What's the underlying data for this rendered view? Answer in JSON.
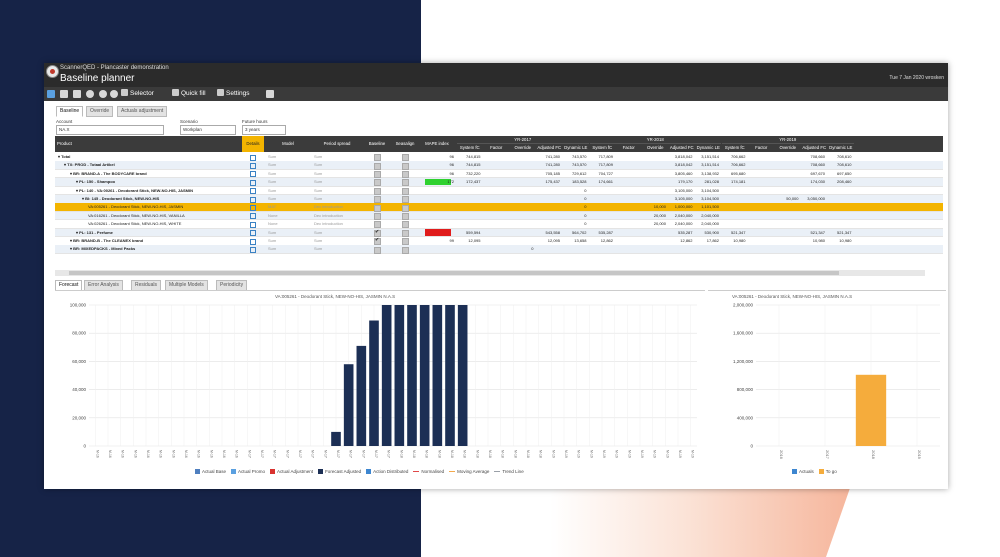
{
  "app": {
    "name": "ScannerQED - Plancaster demonstration",
    "page_title": "Baseline planner",
    "datetime_user": "Tue 7 Jan 2020 wrosken"
  },
  "toolbar": {
    "selector_label": "Selector",
    "quickfill_label": "Quick fill",
    "settings_label": "Settings"
  },
  "top_tabs": [
    "Baseline",
    "Override",
    "Actuals adjustment"
  ],
  "filters": {
    "account": {
      "label": "Account",
      "value": "NA.X"
    },
    "scenario": {
      "label": "Scenario",
      "value": "Workplan"
    },
    "future_hours": {
      "label": "Future hours",
      "value": "3 years"
    }
  },
  "grid": {
    "product_header": "Product",
    "columns": [
      "Details",
      "Model",
      "Period spread",
      "Baseline",
      "Seasalign",
      "MAPE index"
    ],
    "year_groups": [
      "YR-2017",
      "YR-2018",
      "YR-2019"
    ],
    "year_subcolumns": [
      "System fC",
      "Factor",
      "Override",
      "Adjusted FC",
      "Dynamic LE"
    ],
    "rows": [
      {
        "name": "Total",
        "indent": 0,
        "model": "Sum",
        "spread": "Sum",
        "cells": [
          "96",
          "744,815",
          "",
          "",
          "741,280",
          "743,570",
          "717,809",
          "",
          "",
          "3,818,042",
          "3,151,514",
          "706,662",
          "",
          "",
          "708,660",
          "708,610"
        ]
      },
      {
        "name": "TX: PROD - Totaal Artikel",
        "indent": 1,
        "model": "Sum",
        "spread": "Sum",
        "cells": [
          "96",
          "744,815",
          "",
          "",
          "741,280",
          "743,570",
          "717,809",
          "",
          "",
          "3,818,042",
          "3,151,514",
          "706,662",
          "",
          "",
          "708,660",
          "708,610"
        ]
      },
      {
        "name": "BR: BRAND-A - The BODYCARE brand",
        "indent": 2,
        "model": "Sum",
        "spread": "Sum",
        "cells": [
          "96",
          "732,220",
          "",
          "",
          "705,185",
          "729,612",
          "704,727",
          "",
          "",
          "3,805,460",
          "3,138,932",
          "695,680",
          "",
          "",
          "697,670",
          "697,650"
        ]
      },
      {
        "name": "PL: 150 - Shampoo",
        "indent": 3,
        "model": "Sum",
        "spread": "Sum",
        "cells": [
          "172",
          "172,437",
          "",
          "",
          "175,437",
          "183,528",
          "174,661",
          "",
          "",
          "179,170",
          "281,028",
          "174,181",
          "",
          "",
          "174,030",
          "208,460"
        ]
      },
      {
        "name": "PL: 140 - VA:00261 - Deodorant Stick, NEW-NO-HIS, JASMIN",
        "indent": 3,
        "model": "Sum",
        "spread": "Sum",
        "cells": [
          "",
          "",
          "",
          "",
          "",
          "0",
          "",
          "",
          "",
          "3,105,000",
          "3,104,500",
          "",
          "",
          "",
          "",
          ""
        ]
      },
      {
        "name": "BI: 145 - Deodorant Stick, NEW-NO-HIS",
        "indent": 4,
        "model": "Sum",
        "spread": "Sum",
        "cells": [
          "",
          "",
          "",
          "",
          "",
          "0",
          "",
          "",
          "",
          "3,105,000",
          "3,104,500",
          "",
          "",
          "50,000",
          "3,050,000",
          ""
        ]
      },
      {
        "name": "VA:005261 - Deodorant Stick, NEW-NO-HIS, JASMIN",
        "indent": 5,
        "model": "MAT",
        "spread": "Dec introduction",
        "cells": [
          "",
          "",
          "",
          "",
          "",
          "0",
          "",
          "",
          "10,000",
          "1,000,000",
          "1,101,500",
          "",
          "",
          "",
          "",
          ""
        ]
      },
      {
        "name": "VA:016261 - Deodorant Stick, NEW-NO-HIS, VANILLA",
        "indent": 5,
        "model": "None",
        "spread": "Dec introduction",
        "cells": [
          "",
          "",
          "",
          "",
          "",
          "0",
          "",
          "",
          "20,000",
          "2,040,000",
          "2,040,000",
          "",
          "",
          "",
          "",
          ""
        ]
      },
      {
        "name": "VA:026261 - Deodorant Stick, NEW-NO-HIS, WHITE",
        "indent": 5,
        "model": "None",
        "spread": "Dec introduction",
        "cells": [
          "",
          "",
          "",
          "",
          "",
          "0",
          "",
          "",
          "20,000",
          "2,040,000",
          "2,040,000",
          "",
          "",
          "",
          "",
          ""
        ]
      },
      {
        "name": "PL: 131 - Perfume",
        "indent": 3,
        "model": "Sum",
        "spread": "Sum",
        "cells": [
          "",
          "559,594",
          "",
          "",
          "543,558",
          "564,702",
          "535,287",
          "",
          "",
          "535,287",
          "530,900",
          "521,347",
          "",
          "",
          "521,347",
          "521,347"
        ]
      },
      {
        "name": "BR: BRAND-B - The CLEANEX brand",
        "indent": 2,
        "model": "Sum",
        "spread": "Sum",
        "cells": [
          "99",
          "12,095",
          "",
          "",
          "12,095",
          "13,658",
          "12,862",
          "",
          "",
          "12,862",
          "17,862",
          "10,980",
          "",
          "",
          "10,980",
          "10,980"
        ]
      },
      {
        "name": "BR: MIXEDPACKS - Mixed Packs",
        "indent": 2,
        "model": "Sum",
        "spread": "Sum",
        "cells": [
          "",
          "",
          "",
          "0",
          "",
          "",
          "",
          "",
          "",
          "",
          "",
          "",
          "",
          "",
          "",
          ""
        ]
      }
    ]
  },
  "bottom_tabs": [
    "Forecast",
    "Error Analysis",
    "Residuals",
    "Multiple Models",
    "Periodicity"
  ],
  "chart_data": [
    {
      "type": "bar",
      "title": "VA:005261 - Deodorant Stick, NEW-NO-HIS, JASMIN N.A.S",
      "ylim": [
        0,
        100000
      ],
      "yticks": [
        "100,000",
        "80,000",
        "60,000",
        "40,000",
        "20,000",
        "0"
      ],
      "x_tick_labels": [
        "M-16",
        "M-16",
        "M-16",
        "M-16",
        "M-16",
        "M-16",
        "M-16",
        "M-16",
        "M-16",
        "M-16",
        "M-16",
        "M-16",
        "M-17",
        "M-17",
        "M-17",
        "M-17",
        "M-17",
        "M-17",
        "M-17",
        "M-17",
        "M-17",
        "M-17",
        "M-17",
        "M-17",
        "M-18",
        "M-18",
        "M-18",
        "M-18",
        "M-18",
        "M-18",
        "M-18",
        "M-18",
        "M-18",
        "M-18",
        "M-18",
        "M-18",
        "M-19",
        "M-19",
        "M-19",
        "M-19",
        "M-19",
        "M-19",
        "M-19",
        "M-19",
        "M-19",
        "M-19",
        "M-19",
        "M-19"
      ],
      "series": [
        {
          "name": "Forecast Adjusted",
          "color": "#1c2f55",
          "start_index": 19,
          "values": [
            10000,
            58000,
            71000,
            89000,
            100000,
            100000,
            100000,
            100000,
            100000,
            100000,
            100000
          ]
        }
      ],
      "legend": [
        {
          "name": "Actual Base",
          "color": "#4f7fbf",
          "kind": "box"
        },
        {
          "name": "Actual Promo",
          "color": "#5aa0e0",
          "kind": "box"
        },
        {
          "name": "Actual Adjustment",
          "color": "#d9322f",
          "kind": "box"
        },
        {
          "name": "Forecast Adjusted",
          "color": "#1c2f55",
          "kind": "box"
        },
        {
          "name": "Action Distributed",
          "color": "#3d86d0",
          "kind": "box"
        },
        {
          "name": "Normalised",
          "color": "#e04848",
          "kind": "line"
        },
        {
          "name": "Moving Average",
          "color": "#f4a94c",
          "kind": "line"
        },
        {
          "name": "Trend Line",
          "color": "#9aa0a8",
          "kind": "line"
        }
      ]
    },
    {
      "type": "bar",
      "title": "VA:005261 - Deodorant Stick, NEW-NO-HIS, JASMIN N.A.S",
      "ylim": [
        0,
        2000000
      ],
      "yticks": [
        "2,000,000",
        "1,600,000",
        "1,200,000",
        "800,000",
        "400,000",
        "0"
      ],
      "categories": [
        "2016",
        "2017",
        "2018",
        "2019"
      ],
      "series": [
        {
          "name": "Actuals",
          "color": "#3d86d0",
          "values": [
            0,
            0,
            0,
            0
          ]
        },
        {
          "name": "To go",
          "color": "#f5ac3c",
          "values": [
            0,
            0,
            1010000,
            0
          ]
        }
      ]
    }
  ]
}
